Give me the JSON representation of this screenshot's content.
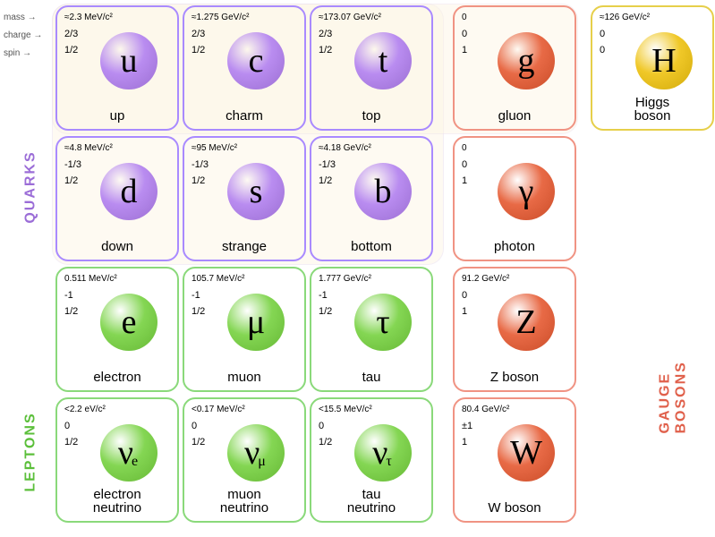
{
  "labels": {
    "mass": "mass →",
    "charge": "charge →",
    "spin": "spin →"
  },
  "groups": {
    "quarks": {
      "text": "QUARKS",
      "color": "#9b6dd7"
    },
    "leptons": {
      "text": "LEPTONS",
      "color": "#5bbf3a"
    },
    "gauge": {
      "text": "GAUGE BOSONS",
      "color": "#e0604b"
    }
  },
  "colors": {
    "quarkBorder": "#a98aff",
    "quarkBall": "#b98cf0",
    "leptonBorder": "#8ad97a",
    "leptonBall": "#84d653",
    "bosonBorder": "#f09383",
    "bosonBall": "#e86a46",
    "higgsBorder": "#e6cf4a",
    "higgsBall": "#f0c828"
  },
  "particles": [
    [
      {
        "t": "quark",
        "sym": "u",
        "name": "up",
        "mass": "≈2.3 MeV/c²",
        "charge": "2/3",
        "spin": "1/2"
      },
      {
        "t": "quark",
        "sym": "c",
        "name": "charm",
        "mass": "≈1.275 GeV/c²",
        "charge": "2/3",
        "spin": "1/2"
      },
      {
        "t": "quark",
        "sym": "t",
        "name": "top",
        "mass": "≈173.07 GeV/c²",
        "charge": "2/3",
        "spin": "1/2"
      },
      {
        "t": "boson",
        "sym": "g",
        "name": "gluon",
        "mass": "0",
        "charge": "0",
        "spin": "1"
      },
      {
        "t": "higgs",
        "sym": "H",
        "name": "Higgs\nboson",
        "mass": "≈126 GeV/c²",
        "charge": "0",
        "spin": "0"
      }
    ],
    [
      {
        "t": "quark",
        "sym": "d",
        "name": "down",
        "mass": "≈4.8 MeV/c²",
        "charge": "-1/3",
        "spin": "1/2"
      },
      {
        "t": "quark",
        "sym": "s",
        "name": "strange",
        "mass": "≈95 MeV/c²",
        "charge": "-1/3",
        "spin": "1/2"
      },
      {
        "t": "quark",
        "sym": "b",
        "name": "bottom",
        "mass": "≈4.18 GeV/c²",
        "charge": "-1/3",
        "spin": "1/2"
      },
      {
        "t": "boson",
        "sym": "γ",
        "name": "photon",
        "mass": "0",
        "charge": "0",
        "spin": "1"
      },
      null
    ],
    [
      {
        "t": "lepton",
        "sym": "e",
        "name": "electron",
        "mass": "0.511 MeV/c²",
        "charge": "-1",
        "spin": "1/2"
      },
      {
        "t": "lepton",
        "sym": "μ",
        "name": "muon",
        "mass": "105.7 MeV/c²",
        "charge": "-1",
        "spin": "1/2"
      },
      {
        "t": "lepton",
        "sym": "τ",
        "name": "tau",
        "mass": "1.777 GeV/c²",
        "charge": "-1",
        "spin": "1/2"
      },
      {
        "t": "boson",
        "sym": "Z",
        "name": "Z boson",
        "mass": "91.2 GeV/c²",
        "charge": "0",
        "spin": "1"
      },
      null
    ],
    [
      {
        "t": "lepton",
        "sym": "ν",
        "sub": "e",
        "name": "electron\nneutrino",
        "mass": "<2.2 eV/c²",
        "charge": "0",
        "spin": "1/2"
      },
      {
        "t": "lepton",
        "sym": "ν",
        "sub": "μ",
        "name": "muon\nneutrino",
        "mass": "<0.17 MeV/c²",
        "charge": "0",
        "spin": "1/2"
      },
      {
        "t": "lepton",
        "sym": "ν",
        "sub": "τ",
        "name": "tau\nneutrino",
        "mass": "<15.5 MeV/c²",
        "charge": "0",
        "spin": "1/2"
      },
      {
        "t": "boson",
        "sym": "W",
        "name": "W boson",
        "mass": "80.4 GeV/c²",
        "charge": "±1",
        "spin": "1"
      },
      null
    ]
  ]
}
